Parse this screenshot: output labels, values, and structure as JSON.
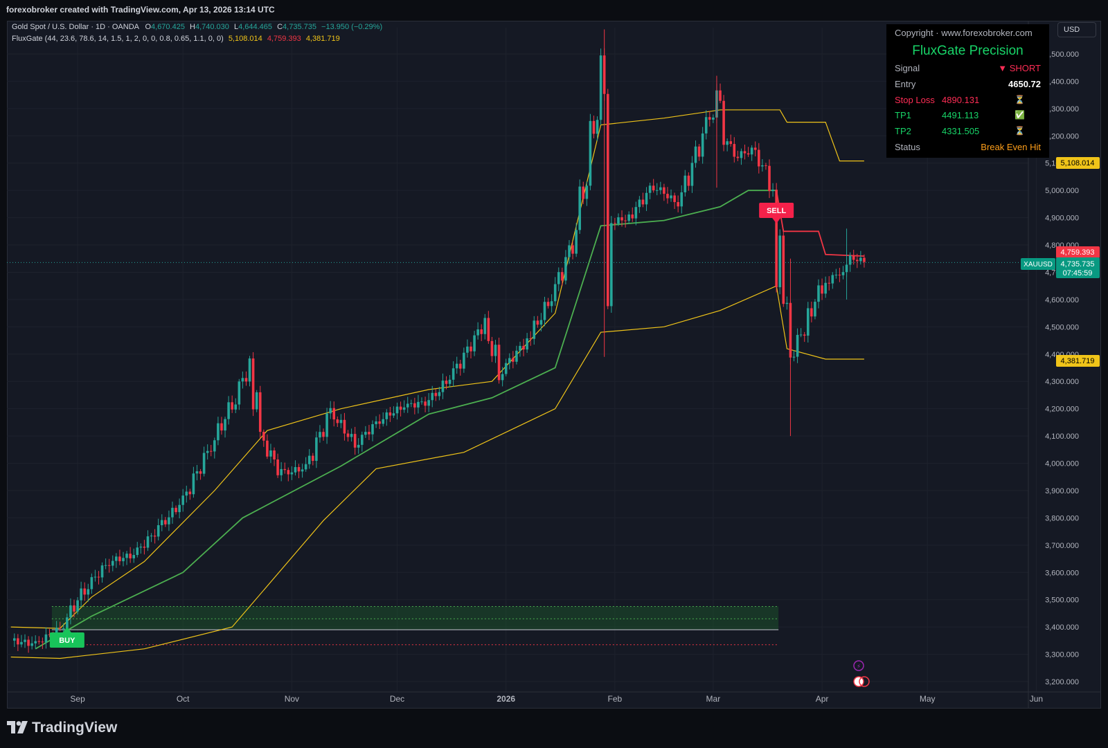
{
  "header": {
    "text": "forexobroker created with TradingView.com, Apr 13, 2026 13:14 UTC"
  },
  "legend": {
    "symbol": "Gold Spot / U.S. Dollar · 1D · OANDA",
    "open": "O4,670.425",
    "high": "H4,740.030",
    "low": "L4,644.465",
    "close": "C4,735.735",
    "change": "−13.950 (−0.29%)",
    "indicator": "FluxGate (44, 23.6, 78.6, 14, 1.5, 1, 2, 0, 0, 0.8, 0.65, 1.1, 0, 0)",
    "ind_v1": "5,108.014",
    "ind_v2": "4,759.393",
    "ind_v3": "4,381.719"
  },
  "currency_button": "USD",
  "info_table": {
    "copyright": "Copyright · www.forexobroker.com",
    "title": "FluxGate Precision",
    "rows": [
      {
        "label": "Signal",
        "value": "▼ SHORT",
        "icon": "",
        "color": "#ff2d55"
      },
      {
        "label": "Entry",
        "value": "4650.72",
        "icon": "",
        "color": "#ffffff"
      },
      {
        "label": "Stop Loss",
        "value": "4890.131",
        "icon": "⏳",
        "color": "#ff2d55"
      },
      {
        "label": "TP1",
        "value": "4491.113",
        "icon": "✅",
        "color": "#18d468"
      },
      {
        "label": "TP2",
        "value": "4331.505",
        "icon": "⏳",
        "color": "#18d468"
      },
      {
        "label": "Status",
        "value": "Break Even Hit",
        "icon": "",
        "color": "#ff9f1a"
      }
    ]
  },
  "markers": {
    "buy": "BUY",
    "sell": "SELL"
  },
  "price_labels": {
    "upper": "5,108.014",
    "stop": "4,759.393",
    "symbol": "XAUUSD",
    "last": "4,735.735",
    "countdown": "07:45:59",
    "lower": "4,381.719"
  },
  "brand": "TradingView",
  "colors": {
    "bull": "#26a69a",
    "bear": "#f23645",
    "band": "#f0c419",
    "mid": "#4caf50",
    "stop": "#f23645"
  },
  "chart_data": {
    "type": "candlestick",
    "timeframe": "1D",
    "ylim": [
      3150,
      5600
    ],
    "y_ticks": [
      3200,
      3300,
      3400,
      3500,
      3600,
      3700,
      3800,
      3900,
      4000,
      4100,
      4200,
      4300,
      4400,
      4500,
      4600,
      4700,
      4800,
      4900,
      5000,
      5100,
      5200,
      5300,
      5400,
      5500
    ],
    "x_ticks": [
      {
        "label": "Sep",
        "date": "2025-09-01"
      },
      {
        "label": "Oct",
        "date": "2025-10-01"
      },
      {
        "label": "Nov",
        "date": "2025-11-01"
      },
      {
        "label": "Dec",
        "date": "2025-12-01"
      },
      {
        "label": "2026",
        "date": "2026-01-01"
      },
      {
        "label": "Feb",
        "date": "2026-02-01"
      },
      {
        "label": "Mar",
        "date": "2026-03-01"
      },
      {
        "label": "Apr",
        "date": "2026-04-01"
      },
      {
        "label": "May",
        "date": "2026-05-01"
      },
      {
        "label": "Jun",
        "date": "2026-06-01"
      }
    ],
    "series": [
      {
        "name": "Close",
        "points": [
          [
            "2025-08-13",
            3350
          ],
          [
            "2025-08-20",
            3338
          ],
          [
            "2025-08-27",
            3395
          ],
          [
            "2025-09-03",
            3540
          ],
          [
            "2025-09-10",
            3640
          ],
          [
            "2025-09-17",
            3665
          ],
          [
            "2025-09-24",
            3760
          ],
          [
            "2025-10-01",
            3865
          ],
          [
            "2025-10-08",
            4040
          ],
          [
            "2025-10-15",
            4220
          ],
          [
            "2025-10-20",
            4360
          ],
          [
            "2025-10-22",
            4120
          ],
          [
            "2025-10-29",
            3960
          ],
          [
            "2025-11-05",
            3985
          ],
          [
            "2025-11-12",
            4190
          ],
          [
            "2025-11-19",
            4070
          ],
          [
            "2025-11-26",
            4160
          ],
          [
            "2025-12-03",
            4210
          ],
          [
            "2025-12-10",
            4225
          ],
          [
            "2025-12-17",
            4330
          ],
          [
            "2025-12-26",
            4520
          ],
          [
            "2025-12-30",
            4330
          ],
          [
            "2026-01-07",
            4450
          ],
          [
            "2026-01-14",
            4610
          ],
          [
            "2026-01-21",
            4840
          ],
          [
            "2026-01-28",
            5400
          ],
          [
            "2026-01-30",
            4880
          ],
          [
            "2026-02-05",
            4900
          ],
          [
            "2026-02-12",
            5020
          ],
          [
            "2026-02-19",
            4950
          ],
          [
            "2026-02-26",
            5200
          ],
          [
            "2026-03-02",
            5330
          ],
          [
            "2026-03-06",
            5120
          ],
          [
            "2026-03-13",
            5150
          ],
          [
            "2026-03-18",
            5000
          ],
          [
            "2026-03-20",
            4650
          ],
          [
            "2026-03-24",
            4390
          ],
          [
            "2026-03-27",
            4510
          ],
          [
            "2026-04-01",
            4650
          ],
          [
            "2026-04-06",
            4700
          ],
          [
            "2026-04-10",
            4760
          ],
          [
            "2026-04-13",
            4735.735
          ]
        ]
      },
      {
        "name": "Upper band",
        "points": [
          [
            "2025-08-13",
            3400
          ],
          [
            "2025-08-27",
            3395
          ],
          [
            "2025-09-05",
            3510
          ],
          [
            "2025-09-20",
            3640
          ],
          [
            "2025-10-10",
            3900
          ],
          [
            "2025-10-25",
            4120
          ],
          [
            "2025-11-15",
            4200
          ],
          [
            "2025-12-10",
            4270
          ],
          [
            "2025-12-28",
            4300
          ],
          [
            "2026-01-15",
            4550
          ],
          [
            "2026-01-28",
            5240
          ],
          [
            "2026-02-15",
            5265
          ],
          [
            "2026-03-03",
            5295
          ],
          [
            "2026-03-20",
            5295
          ],
          [
            "2026-03-22",
            5250
          ],
          [
            "2026-04-02",
            5250
          ],
          [
            "2026-04-06",
            5108.014
          ],
          [
            "2026-04-13",
            5108.014
          ]
        ]
      },
      {
        "name": "Middle line",
        "points": [
          [
            "2025-08-20",
            3320
          ],
          [
            "2025-09-05",
            3440
          ],
          [
            "2025-10-01",
            3600
          ],
          [
            "2025-10-18",
            3800
          ],
          [
            "2025-11-15",
            3990
          ],
          [
            "2025-12-10",
            4180
          ],
          [
            "2025-12-28",
            4240
          ],
          [
            "2026-01-15",
            4350
          ],
          [
            "2026-01-28",
            4870
          ],
          [
            "2026-02-15",
            4890
          ],
          [
            "2026-03-03",
            4940
          ],
          [
            "2026-03-11",
            5000
          ],
          [
            "2026-03-19",
            5000
          ]
        ]
      },
      {
        "name": "Stop line",
        "points": [
          [
            "2026-03-19",
            5000
          ],
          [
            "2026-03-21",
            4850
          ],
          [
            "2026-03-31",
            4850
          ],
          [
            "2026-04-02",
            4765
          ],
          [
            "2026-04-13",
            4759.393
          ]
        ]
      },
      {
        "name": "Lower band",
        "points": [
          [
            "2025-08-13",
            3290
          ],
          [
            "2025-08-27",
            3285
          ],
          [
            "2025-09-20",
            3320
          ],
          [
            "2025-10-15",
            3400
          ],
          [
            "2025-11-10",
            3790
          ],
          [
            "2025-11-25",
            3980
          ],
          [
            "2025-12-20",
            4040
          ],
          [
            "2026-01-15",
            4200
          ],
          [
            "2026-01-28",
            4480
          ],
          [
            "2026-02-15",
            4500
          ],
          [
            "2026-03-03",
            4560
          ],
          [
            "2026-03-19",
            4650
          ],
          [
            "2026-03-22",
            4420
          ],
          [
            "2026-04-02",
            4381.719
          ],
          [
            "2026-04-13",
            4381.719
          ]
        ]
      }
    ],
    "signals": [
      {
        "label": "BUY",
        "date": "2025-08-29",
        "price": 3330
      },
      {
        "label": "SELL",
        "date": "2026-03-19",
        "price": 4950
      }
    ],
    "zone": {
      "from": "2025-08-29",
      "to": "2026-03-19",
      "top": 3475,
      "bottom": 3390,
      "dashed_level": 3430,
      "red_level": 3335
    },
    "last_price": 4735.735
  }
}
